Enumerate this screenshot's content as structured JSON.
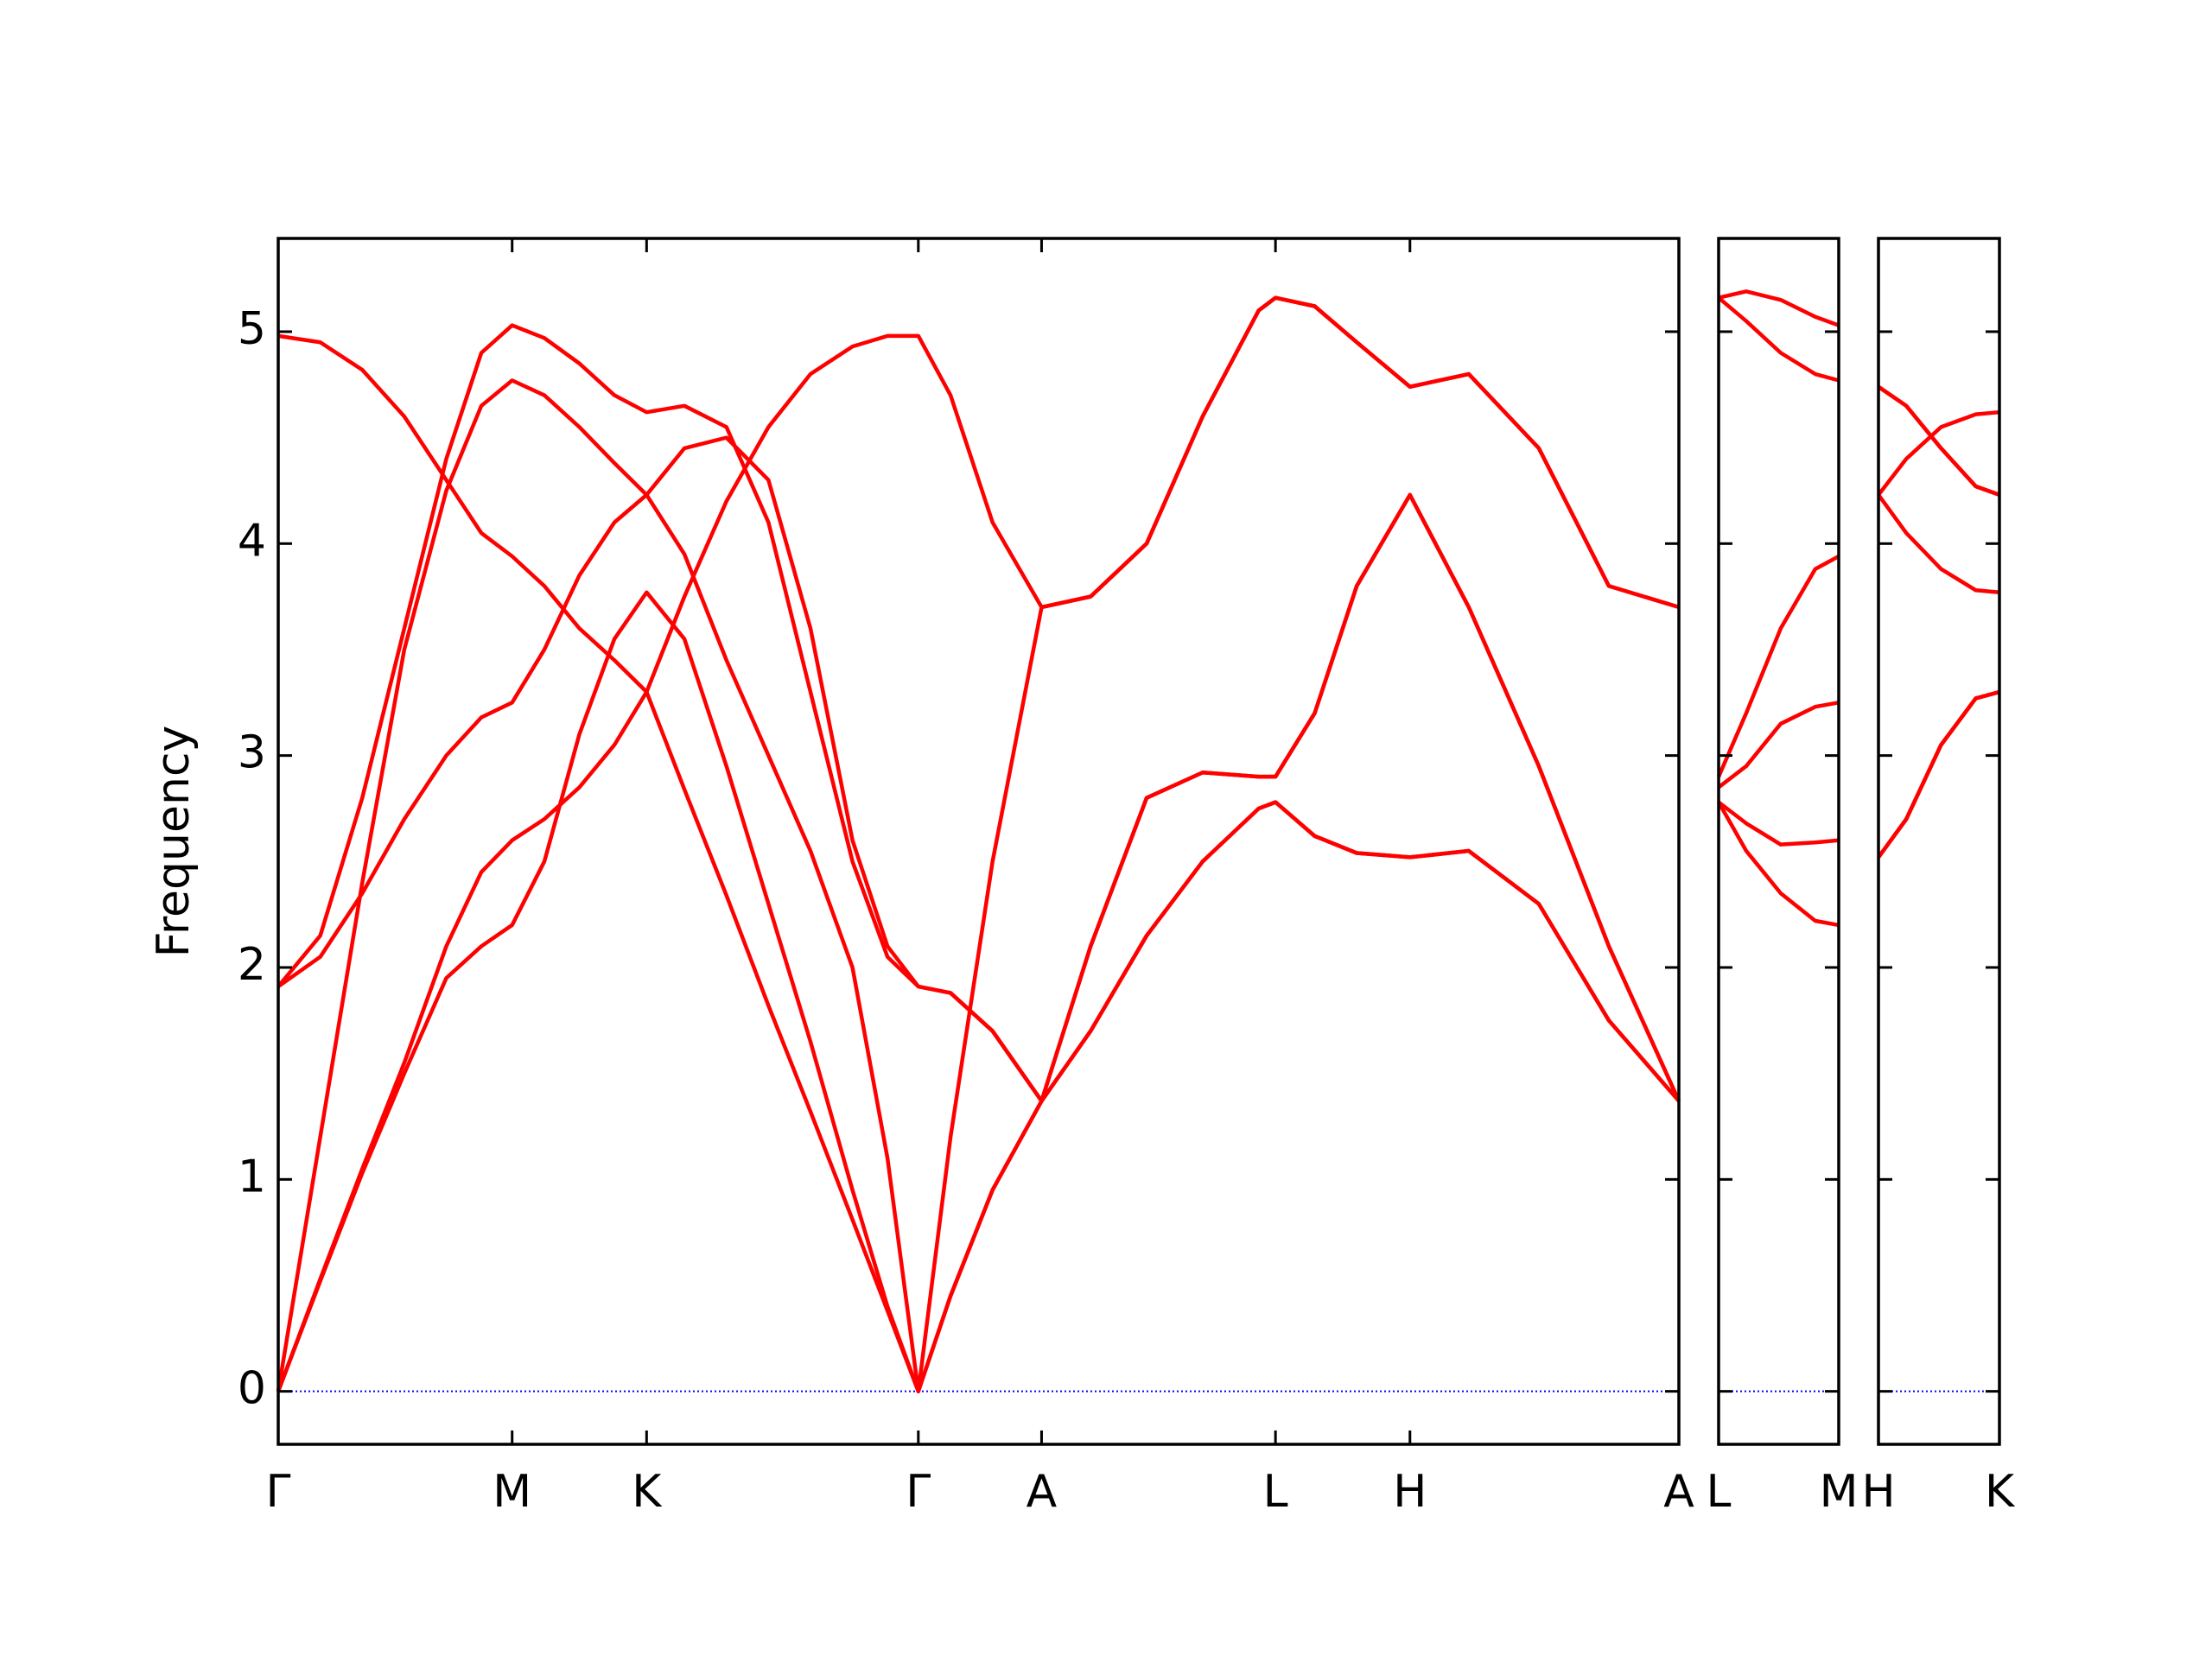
{
  "chart_data": [
    {
      "type": "line",
      "ylabel": "Frequency",
      "show_ytick_labels": true,
      "x": [
        0,
        0.3,
        0.6,
        0.9,
        1.2,
        1.45,
        1.67,
        1.9,
        2.15,
        2.4,
        2.63,
        2.9,
        3.2,
        3.5,
        3.8,
        4.1,
        4.35,
        4.57,
        4.8,
        5.1,
        5.45,
        5.8,
        6.2,
        6.6,
        7.0,
        7.12,
        7.4,
        7.7,
        8.08,
        8.5,
        9.0,
        9.5,
        10.0
      ],
      "series": [
        {
          "color": "#ff0000",
          "values": [
            0,
            0.52,
            1.03,
            1.5,
            1.95,
            2.1,
            2.2,
            2.5,
            3.1,
            3.55,
            3.77,
            3.55,
            2.95,
            2.3,
            1.65,
            0.95,
            0.4,
            0,
            0.45,
            0.95,
            1.37,
            1.7,
            2.15,
            2.5,
            2.75,
            2.78,
            2.62,
            2.54,
            2.52,
            2.55,
            2.3,
            1.75,
            1.37
          ]
        },
        {
          "color": "#ff0000",
          "values": [
            0,
            0.53,
            1.05,
            1.55,
            2.1,
            2.45,
            2.6,
            2.7,
            2.85,
            3.05,
            3.3,
            3.75,
            4.2,
            4.55,
            4.8,
            4.93,
            4.98,
            4.98,
            4.7,
            4.1,
            3.7,
            3.75,
            4.0,
            4.6,
            5.1,
            5.16,
            5.12,
            4.95,
            4.74,
            4.8,
            4.45,
            3.8,
            3.7
          ]
        },
        {
          "color": "#ff0000",
          "values": [
            0,
            1.2,
            2.4,
            3.5,
            4.25,
            4.65,
            4.77,
            4.7,
            4.55,
            4.38,
            4.23,
            3.95,
            3.45,
            3.0,
            2.55,
            2.0,
            1.1,
            0,
            1.2,
            2.5,
            3.7,
            3.75,
            4.0,
            4.6,
            5.1,
            5.16,
            5.12,
            4.95,
            4.74,
            4.8,
            4.45,
            3.8,
            3.7
          ]
        },
        {
          "color": "#ff0000",
          "values": [
            1.91,
            2.15,
            2.8,
            3.6,
            4.4,
            4.9,
            5.03,
            4.97,
            4.85,
            4.7,
            4.62,
            4.65,
            4.55,
            4.1,
            3.3,
            2.5,
            2.05,
            1.91,
            1.88,
            1.7,
            1.37,
            2.1,
            2.8,
            2.92,
            2.9,
            2.9,
            3.2,
            3.8,
            4.23,
            3.7,
            2.95,
            2.1,
            1.37
          ]
        },
        {
          "color": "#ff0000",
          "values": [
            1.91,
            2.05,
            2.35,
            2.7,
            3.0,
            3.18,
            3.25,
            3.5,
            3.85,
            4.1,
            4.23,
            4.45,
            4.5,
            4.3,
            3.6,
            2.6,
            2.1,
            1.91,
            1.88,
            1.7,
            1.37,
            1.7,
            2.15,
            2.5,
            2.75,
            2.78,
            2.62,
            2.54,
            2.52,
            2.55,
            2.3,
            1.75,
            1.37
          ]
        },
        {
          "color": "#ff0000",
          "values": [
            4.98,
            4.95,
            4.82,
            4.6,
            4.3,
            4.05,
            3.94,
            3.8,
            3.6,
            3.45,
            3.3,
            2.84,
            2.34,
            1.82,
            1.32,
            0.81,
            0.38,
            0,
            0.45,
            0.95,
            1.37,
            2.1,
            2.8,
            2.92,
            2.9,
            2.9,
            3.2,
            3.8,
            4.23,
            3.7,
            2.95,
            2.1,
            1.37
          ]
        }
      ],
      "xlim": [
        0,
        10.0
      ],
      "xticks": [
        {
          "value": 0,
          "label": "Γ"
        },
        {
          "value": 1.67,
          "label": "M"
        },
        {
          "value": 2.63,
          "label": "K"
        },
        {
          "value": 4.57,
          "label": "Γ"
        },
        {
          "value": 5.45,
          "label": "A"
        },
        {
          "value": 7.12,
          "label": "L"
        },
        {
          "value": 8.08,
          "label": "H"
        },
        {
          "value": 10.0,
          "label": "A"
        }
      ],
      "ylim": [
        -0.25,
        5.44
      ],
      "yticks": [
        0,
        1,
        2,
        3,
        4,
        5
      ],
      "hlines": [
        {
          "y": 0,
          "color": "#0000ff",
          "style": "dotted"
        }
      ]
    },
    {
      "type": "line",
      "show_ytick_labels": false,
      "x": [
        0,
        0.2,
        0.45,
        0.7,
        0.87
      ],
      "series": [
        {
          "color": "#ff0000",
          "values": [
            5.16,
            5.19,
            5.15,
            5.07,
            5.03
          ]
        },
        {
          "color": "#ff0000",
          "values": [
            5.16,
            5.05,
            4.9,
            4.8,
            4.77
          ]
        },
        {
          "color": "#ff0000",
          "values": [
            2.9,
            3.2,
            3.6,
            3.88,
            3.94
          ]
        },
        {
          "color": "#ff0000",
          "values": [
            2.85,
            2.95,
            3.15,
            3.23,
            3.25
          ]
        },
        {
          "color": "#ff0000",
          "values": [
            2.78,
            2.68,
            2.58,
            2.59,
            2.6
          ]
        },
        {
          "color": "#ff0000",
          "values": [
            2.78,
            2.55,
            2.35,
            2.22,
            2.2
          ]
        }
      ],
      "xlim": [
        0,
        0.87
      ],
      "xticks": [
        {
          "value": 0,
          "label": "L"
        },
        {
          "value": 0.87,
          "label": "M"
        }
      ],
      "ylim": [
        -0.25,
        5.44
      ],
      "yticks": [
        0,
        1,
        2,
        3,
        4,
        5
      ],
      "hlines": [
        {
          "y": 0,
          "color": "#0000ff",
          "style": "dotted"
        }
      ]
    },
    {
      "type": "line",
      "show_ytick_labels": false,
      "x": [
        0,
        0.2,
        0.45,
        0.7,
        0.87
      ],
      "series": [
        {
          "color": "#ff0000",
          "values": [
            4.74,
            4.65,
            4.45,
            4.27,
            4.23
          ]
        },
        {
          "color": "#ff0000",
          "values": [
            4.74,
            4.65,
            4.45,
            4.27,
            4.23
          ]
        },
        {
          "color": "#ff0000",
          "values": [
            4.23,
            4.4,
            4.55,
            4.61,
            4.62
          ]
        },
        {
          "color": "#ff0000",
          "values": [
            4.23,
            4.05,
            3.88,
            3.78,
            3.77
          ]
        },
        {
          "color": "#ff0000",
          "values": [
            2.52,
            2.7,
            3.05,
            3.27,
            3.3
          ]
        },
        {
          "color": "#ff0000",
          "values": [
            2.52,
            2.7,
            3.05,
            3.27,
            3.3
          ]
        }
      ],
      "xlim": [
        0,
        0.87
      ],
      "xticks": [
        {
          "value": 0,
          "label": "H"
        },
        {
          "value": 0.87,
          "label": "K"
        }
      ],
      "ylim": [
        -0.25,
        5.44
      ],
      "yticks": [
        0,
        1,
        2,
        3,
        4,
        5
      ],
      "hlines": [
        {
          "y": 0,
          "color": "#0000ff",
          "style": "dotted"
        }
      ]
    }
  ]
}
